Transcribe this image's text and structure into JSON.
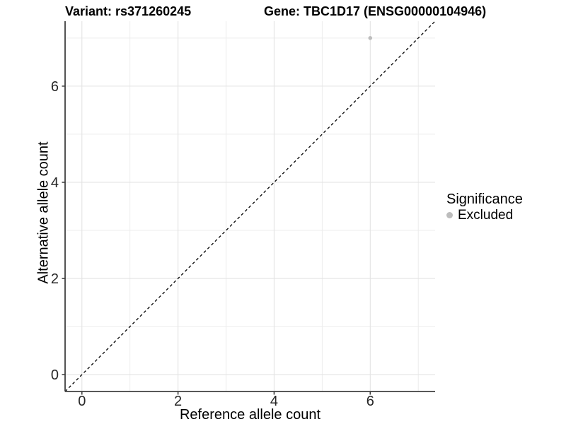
{
  "chart_data": {
    "type": "scatter",
    "title_left": "Variant: rs371260245",
    "title_right": "Gene: TBC1D17 (ENSG00000104946)",
    "xlabel": "Reference allele count",
    "ylabel": "Alternative allele count",
    "xlim": [
      -0.35,
      7.35
    ],
    "ylim": [
      -0.35,
      7.35
    ],
    "major_ticks": [
      0,
      2,
      4,
      6
    ],
    "minor_gridlines": [
      1,
      3,
      5,
      7
    ],
    "grid": "on",
    "legend_position": "right",
    "identity_line": {
      "style": "dashed",
      "from": [
        -0.35,
        -0.35
      ],
      "to": [
        7.35,
        7.35
      ],
      "color": "#000000"
    },
    "series": [
      {
        "name": "Excluded",
        "color": "#bdbdbd",
        "points": [
          {
            "x": 6,
            "y": 7
          }
        ]
      }
    ],
    "legend": {
      "title": "Significance",
      "items": [
        {
          "label": "Excluded",
          "color": "#bdbdbd"
        }
      ]
    },
    "colors": {
      "background": "#ffffff",
      "axis_line": "#404040",
      "grid_major": "#e3e3e3",
      "grid_minor": "#ececec",
      "tick_label": "#262626",
      "point": "#c2c2c2"
    }
  }
}
